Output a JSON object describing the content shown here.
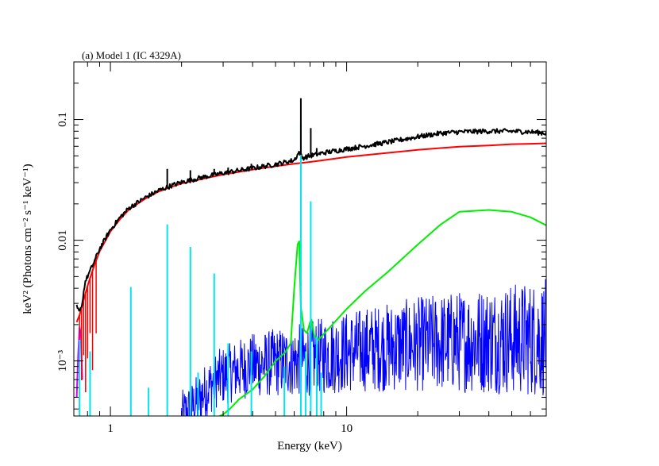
{
  "chart_data": {
    "type": "line",
    "title": "(a) Model 1 (IC 4329A)",
    "xlabel": "Energy (keV)",
    "ylabel": "keV² (Photons cm⁻² s⁻¹ keV⁻¹)",
    "xscale": "log",
    "yscale": "log",
    "xlim": [
      0.7,
      70
    ],
    "ylim": [
      0.00035,
      0.3
    ],
    "x_ticks": [
      {
        "value": 1,
        "label": "1"
      },
      {
        "value": 10,
        "label": "10"
      }
    ],
    "y_ticks": [
      {
        "value": 0.001,
        "label": "10⁻³"
      },
      {
        "value": 0.01,
        "label": "0.01"
      },
      {
        "value": 0.1,
        "label": "0.1"
      }
    ],
    "grid": false,
    "legend": "none",
    "series": [
      {
        "color": "#000000",
        "style": "noisy-line",
        "x": [
          0.72,
          0.74,
          0.76,
          0.78,
          0.8,
          0.85,
          0.9,
          1.0,
          1.1,
          1.2,
          1.4,
          1.6,
          1.8,
          2.0,
          2.5,
          3.0,
          4.0,
          5.0,
          6.0,
          6.3,
          6.5,
          7.0,
          8.0,
          10,
          15,
          20,
          25,
          30,
          40,
          50,
          60,
          70
        ],
        "y": [
          0.0028,
          0.0025,
          0.003,
          0.0045,
          0.005,
          0.0065,
          0.0085,
          0.0122,
          0.0155,
          0.0185,
          0.0225,
          0.0258,
          0.0282,
          0.0302,
          0.0335,
          0.036,
          0.0395,
          0.0425,
          0.046,
          0.054,
          0.048,
          0.05,
          0.053,
          0.057,
          0.065,
          0.072,
          0.077,
          0.079,
          0.08,
          0.08,
          0.079,
          0.077
        ]
      },
      {
        "color": "#ff0000",
        "style": "line",
        "x": [
          0.72,
          0.74,
          0.76,
          0.78,
          0.8,
          0.85,
          0.9,
          1.0,
          1.1,
          1.2,
          1.4,
          1.6,
          1.8,
          2.0,
          2.5,
          3.0,
          4.0,
          5.0,
          6.0,
          7.0,
          8.0,
          10,
          15,
          20,
          25,
          30,
          40,
          50,
          60,
          70
        ],
        "y": [
          0.0021,
          0.0024,
          0.0029,
          0.0035,
          0.0042,
          0.006,
          0.0081,
          0.0118,
          0.015,
          0.018,
          0.022,
          0.0253,
          0.0275,
          0.0295,
          0.0325,
          0.035,
          0.0385,
          0.041,
          0.043,
          0.0445,
          0.046,
          0.049,
          0.053,
          0.056,
          0.058,
          0.0595,
          0.061,
          0.0625,
          0.063,
          0.0635
        ]
      },
      {
        "color": "#00ee00",
        "style": "line",
        "x": [
          2.9,
          3.0,
          3.2,
          3.5,
          4.0,
          4.5,
          5.0,
          5.5,
          5.8,
          6.0,
          6.2,
          6.3,
          6.4,
          6.6,
          6.8,
          7.0,
          7.1,
          7.3,
          7.6,
          8.5,
          10,
          12,
          15,
          20,
          25,
          30,
          40,
          50,
          60,
          70
        ],
        "y": [
          0.00035,
          0.00036,
          0.0004,
          0.00048,
          0.00058,
          0.00075,
          0.001,
          0.00118,
          0.0014,
          0.004,
          0.0092,
          0.0098,
          0.0028,
          0.0018,
          0.0017,
          0.0021,
          0.0022,
          0.0016,
          0.0015,
          0.0019,
          0.0027,
          0.0038,
          0.0055,
          0.0092,
          0.0135,
          0.0172,
          0.0178,
          0.0172,
          0.0155,
          0.0133
        ]
      },
      {
        "color": "#0000ff",
        "style": "noisy-line",
        "x": [
          2.0,
          2.2,
          2.5,
          2.8,
          3.0,
          3.5,
          4.0,
          5.0,
          6.0,
          7.0,
          8.0,
          10,
          12,
          15,
          20,
          25,
          30,
          40,
          50,
          60,
          70
        ],
        "y": [
          0.00035,
          0.0004,
          0.00055,
          0.0007,
          0.00075,
          0.00085,
          0.00092,
          0.00097,
          0.001,
          0.00105,
          0.0011,
          0.00118,
          0.00125,
          0.0013,
          0.00138,
          0.00142,
          0.00145,
          0.0015,
          0.00152,
          0.00153,
          0.00155
        ]
      },
      {
        "color": "#cc00ff",
        "style": "line",
        "x": [
          0.72,
          0.73,
          0.74,
          0.75,
          0.76
        ],
        "y": [
          0.0005,
          0.0011,
          0.0019,
          0.0017,
          0.0007
        ]
      }
    ],
    "emission_lines": {
      "color": "#00e5ee",
      "x": [
        0.74,
        0.82,
        1.22,
        1.45,
        1.74,
        2.18,
        2.35,
        2.75,
        3.15,
        3.95,
        5.45,
        6.4,
        6.7,
        7.05,
        7.47,
        7.8
      ],
      "y": [
        0.0015,
        0.0012,
        0.0041,
        0.0006,
        0.0135,
        0.0088,
        0.0008,
        0.0053,
        0.0014,
        0.0012,
        0.0009,
        0.092,
        0.0012,
        0.021,
        0.0016,
        0.0008
      ]
    },
    "black_spikes": {
      "color": "#000000",
      "x": [
        1.22,
        1.74,
        2.18,
        2.75,
        3.15,
        3.95,
        6.4,
        7.05,
        7.47
      ],
      "y": [
        0.019,
        0.039,
        0.038,
        0.039,
        0.04,
        0.043,
        0.15,
        0.085,
        0.058
      ]
    }
  }
}
